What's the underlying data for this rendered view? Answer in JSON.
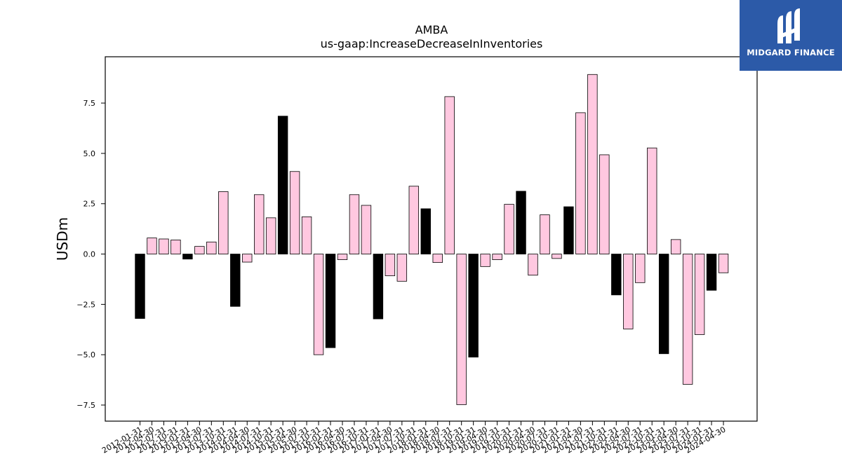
{
  "brand": {
    "name": "MIDGARD FINANCE",
    "logo_icon": "midgard-m-monogram-icon",
    "background": "#2c5aa8"
  },
  "chart_data": {
    "type": "bar",
    "title": "AMBA",
    "subtitle": "us-gaap:IncreaseDecreaseInInventories",
    "xlabel": "",
    "ylabel": "USDm",
    "ylim": [
      -8.3,
      9.8
    ],
    "yticks": [
      -7.5,
      -5.0,
      -2.5,
      0.0,
      2.5,
      5.0,
      7.5
    ],
    "grid": false,
    "colors": {
      "q4_fiscal": "#000000",
      "other": "#ffc8e0",
      "edge": "#000000"
    },
    "categories": [
      "2012-01-31",
      "2012-04-30",
      "2012-07-31",
      "2012-10-31",
      "2013-01-31",
      "2013-04-30",
      "2013-07-31",
      "2013-10-31",
      "2014-01-31",
      "2014-04-30",
      "2014-07-31",
      "2014-10-31",
      "2015-01-31",
      "2015-04-30",
      "2015-07-31",
      "2015-10-31",
      "2016-01-31",
      "2016-04-30",
      "2016-07-31",
      "2016-10-31",
      "2017-01-31",
      "2017-04-30",
      "2017-07-31",
      "2017-10-31",
      "2018-01-31",
      "2018-04-30",
      "2018-07-31",
      "2018-10-31",
      "2019-01-31",
      "2019-04-30",
      "2019-07-31",
      "2019-10-31",
      "2020-01-31",
      "2020-04-30",
      "2020-07-31",
      "2020-10-31",
      "2021-01-31",
      "2021-04-30",
      "2021-07-31",
      "2021-10-31",
      "2022-01-31",
      "2022-04-30",
      "2022-07-31",
      "2022-10-31",
      "2023-01-31",
      "2023-04-30",
      "2023-07-31",
      "2023-10-31",
      "2024-01-31",
      "2024-04-30"
    ],
    "values": [
      -3.2,
      0.8,
      0.75,
      0.7,
      -0.25,
      0.38,
      0.6,
      3.1,
      -2.6,
      -0.4,
      2.95,
      1.8,
      6.85,
      4.1,
      1.85,
      -5.0,
      -4.65,
      -0.28,
      2.95,
      2.42,
      -3.22,
      -1.08,
      -1.35,
      3.37,
      2.25,
      -0.42,
      7.82,
      -7.48,
      -5.12,
      -0.62,
      -0.28,
      2.47,
      3.12,
      -1.05,
      1.95,
      -0.22,
      2.35,
      7.02,
      8.92,
      4.93,
      -2.03,
      -3.72,
      -1.42,
      5.27,
      -4.95,
      0.72,
      -6.47,
      -4.0,
      -1.8,
      -0.93
    ],
    "highlight": [
      true,
      false,
      false,
      false,
      true,
      false,
      false,
      false,
      true,
      false,
      false,
      false,
      true,
      false,
      false,
      false,
      true,
      false,
      false,
      false,
      true,
      false,
      false,
      false,
      true,
      false,
      false,
      false,
      true,
      false,
      false,
      false,
      true,
      false,
      false,
      false,
      true,
      false,
      false,
      false,
      true,
      false,
      false,
      false,
      true,
      false,
      false,
      false,
      true,
      false
    ]
  }
}
